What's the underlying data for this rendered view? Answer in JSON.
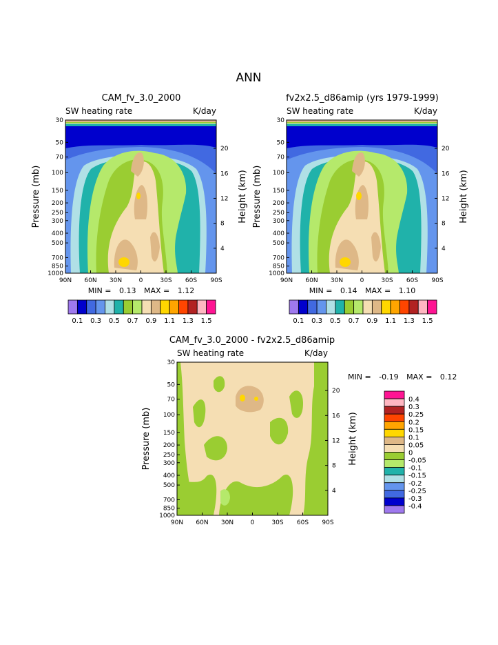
{
  "figure_title": "ANN",
  "chart_data": [
    {
      "type": "contour",
      "title": "CAM_fv_3.0_2000",
      "subtitle_left": "SW heating rate",
      "subtitle_right": "K/day",
      "ylabel": "Pressure (mb)",
      "ylabel_right": "Height (km)",
      "x_ticks": [
        "90N",
        "60N",
        "30N",
        "0",
        "30S",
        "60S",
        "90S"
      ],
      "y_ticks": [
        "30",
        "50",
        "70",
        "100",
        "150",
        "200",
        "250",
        "300",
        "400",
        "500",
        "700",
        "850",
        "1000"
      ],
      "y_ticks_right": [
        "20",
        "16",
        "12",
        "8",
        "4"
      ],
      "stats": {
        "min_label": "MIN =",
        "min": "0.13",
        "max_label": "MAX =",
        "max": "1.12"
      },
      "colorbar": {
        "levels": [
          0.1,
          0.2,
          0.3,
          0.4,
          0.5,
          0.6,
          0.7,
          0.8,
          0.9,
          1.0,
          1.1,
          1.2,
          1.3,
          1.4,
          1.5
        ],
        "labels": [
          "0.1",
          "0.3",
          "0.5",
          "0.7",
          "0.9",
          "1.1",
          "1.3",
          "1.5"
        ],
        "colors": [
          "#9f79ee",
          "#0000cd",
          "#4169e1",
          "#6495ed",
          "#b0e0e6",
          "#20b2aa",
          "#9acd32",
          "#b5e96b",
          "#f5deb3",
          "#deb887",
          "#ffd700",
          "#ffa500",
          "#ff4500",
          "#b22222",
          "#ffb6c1",
          "#ff1493"
        ]
      }
    },
    {
      "type": "contour",
      "title": "fv2x2.5_d86amip (yrs 1979-1999)",
      "subtitle_left": "SW heating rate",
      "subtitle_right": "K/day",
      "ylabel": "Pressure (mb)",
      "ylabel_right": "Height (km)",
      "x_ticks": [
        "90N",
        "60N",
        "30N",
        "0",
        "30S",
        "60S",
        "90S"
      ],
      "y_ticks": [
        "30",
        "50",
        "70",
        "100",
        "150",
        "200",
        "250",
        "300",
        "400",
        "500",
        "700",
        "850",
        "1000"
      ],
      "y_ticks_right": [
        "20",
        "16",
        "12",
        "8",
        "4"
      ],
      "stats": {
        "min_label": "MIN =",
        "min": "0.14",
        "max_label": "MAX =",
        "max": "1.10"
      }
    },
    {
      "type": "contour",
      "title": "CAM_fv_3.0_2000 - fv2x2.5_d86amip",
      "subtitle_left": "SW heating rate",
      "subtitle_right": "K/day",
      "ylabel": "Pressure (mb)",
      "ylabel_right": "Height (km)",
      "x_ticks": [
        "90N",
        "60N",
        "30N",
        "0",
        "30S",
        "60S",
        "90S"
      ],
      "y_ticks": [
        "30",
        "50",
        "70",
        "100",
        "150",
        "200",
        "250",
        "300",
        "400",
        "500",
        "700",
        "850",
        "1000"
      ],
      "y_ticks_right": [
        "20",
        "16",
        "12",
        "8",
        "4"
      ],
      "stats": {
        "min_label": "MIN =",
        "min": "-0.19",
        "max_label": "MAX =",
        "max": "0.12"
      },
      "colorbar": {
        "labels": [
          "0.4",
          "0.3",
          "0.25",
          "0.2",
          "0.15",
          "0.1",
          "0.05",
          "0",
          "-0.05",
          "-0.1",
          "-0.15",
          "-0.2",
          "-0.25",
          "-0.3",
          "-0.4"
        ],
        "colors": [
          "#ff1493",
          "#ffb6c1",
          "#b22222",
          "#ff4500",
          "#ffa500",
          "#ffd700",
          "#deb887",
          "#f5deb3",
          "#9acd32",
          "#b5e96b",
          "#20b2aa",
          "#b0e0e6",
          "#6495ed",
          "#4169e1",
          "#0000cd",
          "#9f79ee"
        ]
      }
    }
  ]
}
